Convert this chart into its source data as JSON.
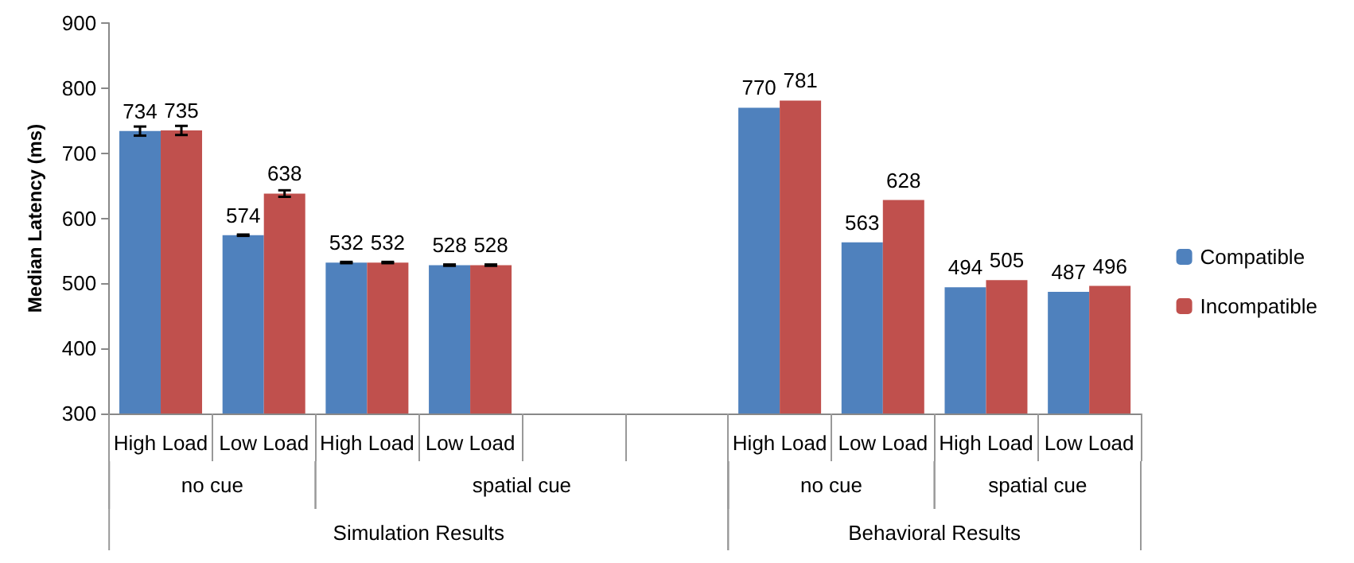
{
  "chart_data": {
    "type": "bar",
    "ylabel": "Median Latency (ms)",
    "categories": [
      "High Load",
      "Low Load",
      "High Load",
      "Low Load",
      null,
      null,
      "High Load",
      "Low Load",
      "High Load",
      "Low Load"
    ],
    "series": [
      {
        "name": "Compatible",
        "color": "#4f81bd",
        "values": [
          734,
          574,
          532,
          528,
          null,
          null,
          770,
          563,
          494,
          487
        ],
        "errors": [
          7,
          1,
          1,
          1,
          null,
          null,
          null,
          null,
          null,
          null
        ],
        "value_labels": [
          "734",
          "574",
          "532",
          "528",
          null,
          null,
          "770",
          "563",
          "494",
          "487"
        ]
      },
      {
        "name": "Incompatible",
        "color": "#c0504d",
        "values": [
          735,
          638,
          532,
          528,
          null,
          null,
          781,
          628,
          505,
          496
        ],
        "errors": [
          7,
          5,
          1,
          1,
          null,
          null,
          null,
          null,
          null,
          null
        ],
        "value_labels": [
          "735",
          "638",
          "532",
          "528",
          null,
          null,
          "781",
          "628",
          "505",
          "496"
        ]
      }
    ],
    "annotations": [
      "no cue",
      "spatial cue",
      "no cue",
      "spatial cue",
      "Simulation Results",
      "Behavioral Results"
    ],
    "ylim": [
      300,
      900
    ],
    "yticks": [
      300,
      400,
      500,
      600,
      700,
      800,
      900
    ],
    "grid": false,
    "legend": "right"
  }
}
